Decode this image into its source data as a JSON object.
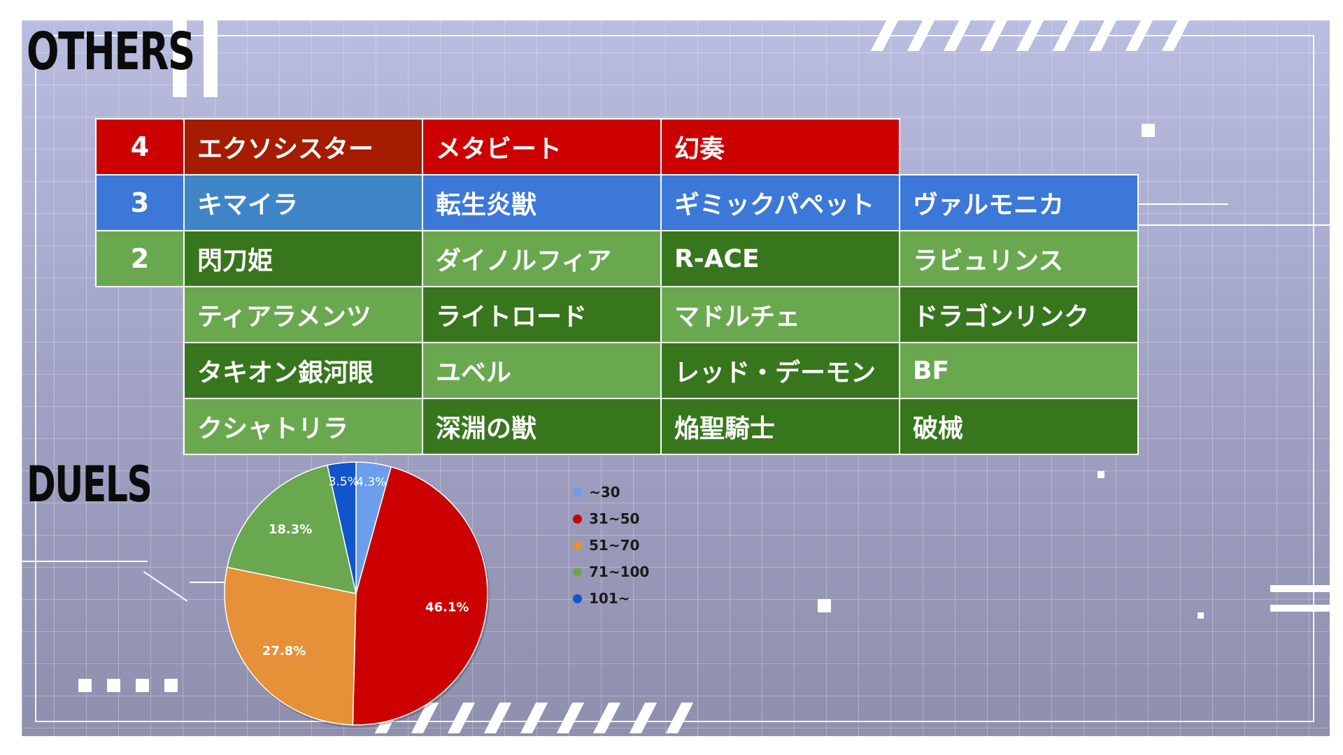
{
  "headings": {
    "others": "OTHERS",
    "duels": "DUELS"
  },
  "ranks": [
    {
      "rank": "4",
      "color": "#cc0000",
      "cells": [
        {
          "text": "エクソシスター",
          "color": "#a61c00"
        },
        {
          "text": "メタビート",
          "color": "#cc0000"
        },
        {
          "text": "幻奏",
          "color": "#cc0000"
        }
      ]
    },
    {
      "rank": "3",
      "color": "#3c78d8",
      "cells": [
        {
          "text": "キマイラ",
          "color": "#3d85c6"
        },
        {
          "text": "転生炎獣",
          "color": "#3c78d8"
        },
        {
          "text": "ギミックパペット",
          "color": "#3c78d8"
        },
        {
          "text": "ヴァルモニカ",
          "color": "#3c78d8"
        }
      ]
    },
    {
      "rank": "2",
      "color": "#6aa84f",
      "cells": [
        {
          "text": "閃刀姫",
          "color": "#38761d"
        },
        {
          "text": "ダイノルフィア",
          "color": "#6aa84f"
        },
        {
          "text": "R-ACE",
          "color": "#38761d"
        },
        {
          "text": "ラビュリンス",
          "color": "#6aa84f"
        }
      ]
    },
    {
      "rank": "",
      "color": "",
      "cells": [
        {
          "text": "ティアラメンツ",
          "color": "#6aa84f"
        },
        {
          "text": "ライトロード",
          "color": "#38761d"
        },
        {
          "text": "マドルチェ",
          "color": "#6aa84f"
        },
        {
          "text": "ドラゴンリンク",
          "color": "#38761d"
        }
      ]
    },
    {
      "rank": "",
      "color": "",
      "cells": [
        {
          "text": "タキオン銀河眼",
          "color": "#38761d"
        },
        {
          "text": "ユベル",
          "color": "#6aa84f"
        },
        {
          "text": "レッド・デーモン",
          "color": "#38761d"
        },
        {
          "text": "BF",
          "color": "#6aa84f"
        }
      ]
    },
    {
      "rank": "",
      "color": "",
      "cells": [
        {
          "text": "クシャトリラ",
          "color": "#6aa84f"
        },
        {
          "text": "深淵の獣",
          "color": "#38761d"
        },
        {
          "text": "焔聖騎士",
          "color": "#38761d"
        },
        {
          "text": "破械",
          "color": "#38761d"
        }
      ]
    }
  ],
  "chart_data": {
    "type": "pie",
    "labels": [
      "~30",
      "31~50",
      "51~70",
      "71~100",
      "101~"
    ],
    "values": [
      4.3,
      46.1,
      27.8,
      18.3,
      3.5
    ],
    "data_labels": [
      "4.3%",
      "46.1%",
      "27.8%",
      "18.3%",
      "3.5%"
    ],
    "colors": [
      "#6d9eeb",
      "#cc0000",
      "#e69138",
      "#6aa84f",
      "#1155cc"
    ],
    "legend": "right",
    "start": "12 o'clock, clockwise"
  }
}
